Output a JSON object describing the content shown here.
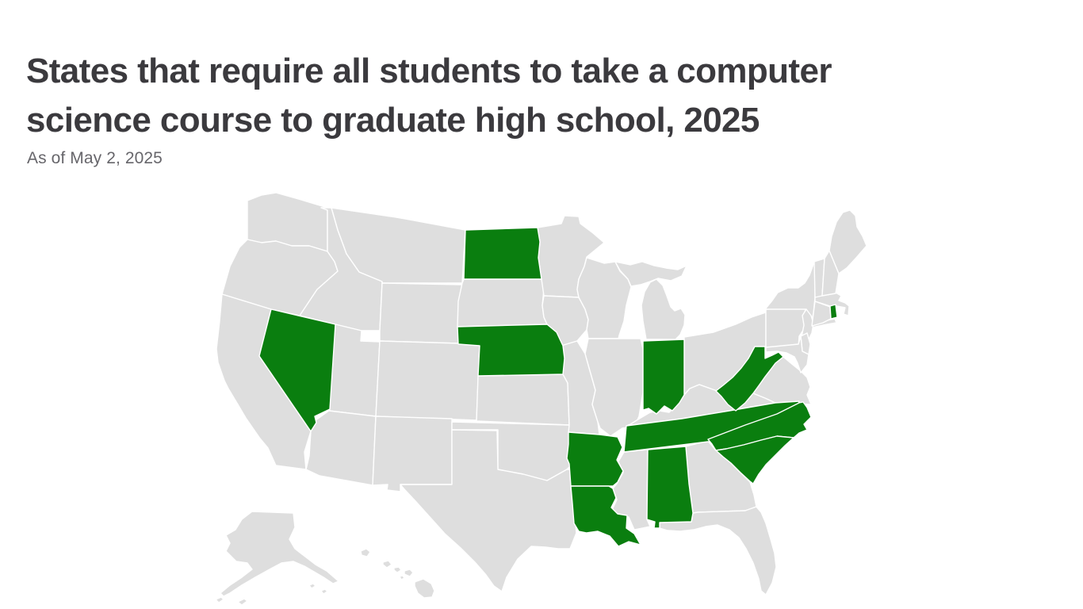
{
  "header": {
    "title_line1": "States that require all students to take a computer",
    "title_line2": "science course to graduate high school, 2025",
    "subtitle": "As of May 2, 2025"
  },
  "chart_data": {
    "type": "choropleth-map",
    "region": "United States (Albers projection with Alaska and Hawaii insets)",
    "title": "States that require all students to take a computer science course to graduate high school, 2025",
    "as_of_note": "As of May 2, 2025",
    "legend": "none shown",
    "highlighted_meaning": "State requires all students to take a computer science course to graduate high school",
    "highlighted_states": [
      "Alabama",
      "Arkansas",
      "Indiana",
      "Louisiana",
      "Nebraska",
      "Nevada",
      "North Carolina",
      "North Dakota",
      "Rhode Island",
      "South Carolina",
      "Tennessee",
      "West Virginia"
    ],
    "colors": {
      "highlighted": "#0a7e0f",
      "not_highlighted": "#dedede",
      "state_border": "#ffffff",
      "title_text": "#3b3a3e",
      "subtitle_text": "#67666b"
    }
  }
}
